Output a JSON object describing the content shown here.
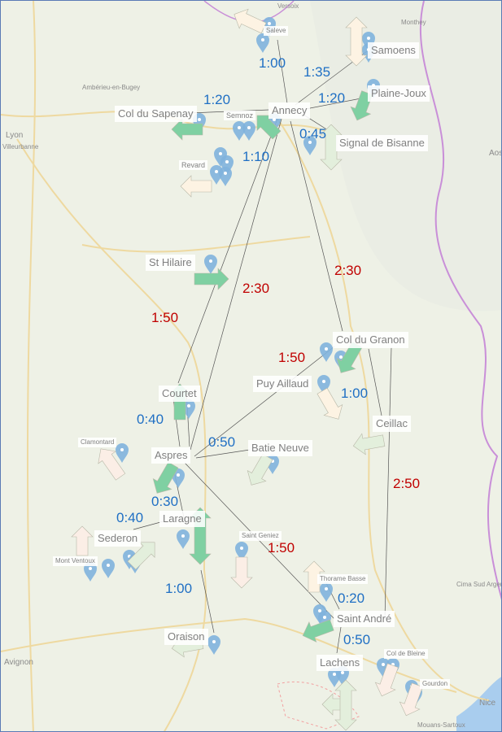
{
  "colors": {
    "blue_time": "#1f6fc4",
    "red_time": "#c00000",
    "pin": "#7fb2dd",
    "arrow_green": "#7fd0a2",
    "arrow_cream": "#fdf3e3",
    "arrow_pink": "#fbeee6",
    "arrow_pale_green": "#e3efdc",
    "land": "#eef1e6",
    "border_purple": "#c98fd8",
    "road": "#eed9a0",
    "sea": "#a9cdee"
  },
  "sites": [
    {
      "name": "Saleve"
    },
    {
      "name": "Samoens"
    },
    {
      "name": "Plaine-Joux"
    },
    {
      "name": "Annecy"
    },
    {
      "name": "Col du Sapenay"
    },
    {
      "name": "Semnoz"
    },
    {
      "name": "Signal de Bisanne"
    },
    {
      "name": "Revard"
    },
    {
      "name": "St Hilaire"
    },
    {
      "name": "Col du Granon"
    },
    {
      "name": "Puy Aillaud"
    },
    {
      "name": "Courtet"
    },
    {
      "name": "Ceillac"
    },
    {
      "name": "Clamontard"
    },
    {
      "name": "Aspres"
    },
    {
      "name": "Batie Neuve"
    },
    {
      "name": "Laragne"
    },
    {
      "name": "Sederon"
    },
    {
      "name": "Saint Geniez"
    },
    {
      "name": "Mont Ventoux"
    },
    {
      "name": "Thorame Basse"
    },
    {
      "name": "Saint André"
    },
    {
      "name": "Oraison"
    },
    {
      "name": "Lachens"
    },
    {
      "name": "Col de Bleine"
    },
    {
      "name": "Gourdon"
    }
  ],
  "times": [
    {
      "label": "1:00",
      "color": "blue"
    },
    {
      "label": "1:35",
      "color": "blue"
    },
    {
      "label": "1:20",
      "color": "blue"
    },
    {
      "label": "1:20",
      "color": "blue"
    },
    {
      "label": "0:45",
      "color": "blue"
    },
    {
      "label": "1:10",
      "color": "blue"
    },
    {
      "label": "2:30",
      "color": "red"
    },
    {
      "label": "2:30",
      "color": "red"
    },
    {
      "label": "1:50",
      "color": "red"
    },
    {
      "label": "1:50",
      "color": "red"
    },
    {
      "label": "1:00",
      "color": "blue"
    },
    {
      "label": "0:40",
      "color": "blue"
    },
    {
      "label": "0:50",
      "color": "blue"
    },
    {
      "label": "2:50",
      "color": "red"
    },
    {
      "label": "0:30",
      "color": "blue"
    },
    {
      "label": "0:40",
      "color": "blue"
    },
    {
      "label": "1:50",
      "color": "red"
    },
    {
      "label": "1:00",
      "color": "blue"
    },
    {
      "label": "0:20",
      "color": "blue"
    },
    {
      "label": "0:50",
      "color": "blue"
    }
  ],
  "towns": [
    "Versoix",
    "Ambérieu-en-Bugey",
    "Lyon",
    "Villeurbanne",
    "Avignon",
    "Nice",
    "Mouans-Sartoux",
    "Monthey",
    "Cima Sud Argentera",
    "Aos"
  ]
}
